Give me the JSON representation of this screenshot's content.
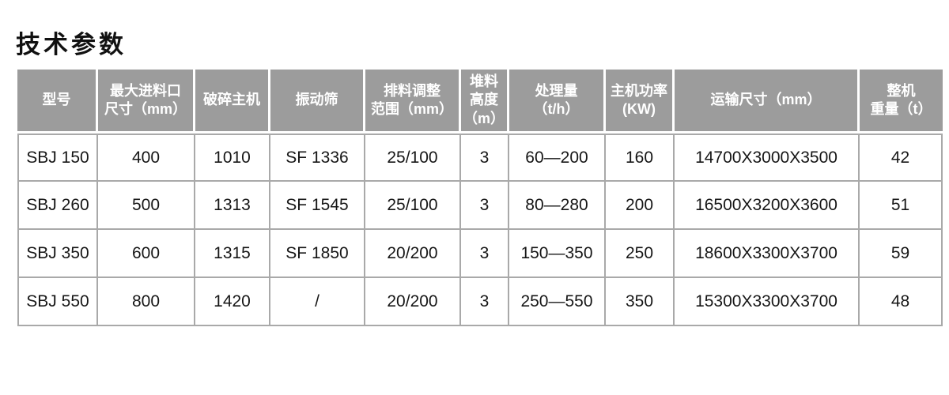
{
  "page_title": "技术参数",
  "colors": {
    "header_bg": "#9c9c9c",
    "header_text": "#ffffff",
    "grid_line": "#a9a9a9",
    "body_text": "#161616",
    "page_bg": "#ffffff"
  },
  "table": {
    "headers": [
      "型号",
      "最大进料口\n尺寸（mm）",
      "破碎主机",
      "振动筛",
      "排料调整\n范围（mm）",
      "堆料\n高度\n（m）",
      "处理量\n（t/h）",
      "主机功率\n(KW)",
      "运输尺寸（mm）",
      "整机\n重量（t）"
    ],
    "rows": [
      [
        "SBJ 150",
        "400",
        "1010",
        "SF 1336",
        "25/100",
        "3",
        "60—200",
        "160",
        "14700X3000X3500",
        "42"
      ],
      [
        "SBJ 260",
        "500",
        "1313",
        "SF 1545",
        "25/100",
        "3",
        "80—280",
        "200",
        "16500X3200X3600",
        "51"
      ],
      [
        "SBJ 350",
        "600",
        "1315",
        "SF 1850",
        "20/200",
        "3",
        "150—350",
        "250",
        "18600X3300X3700",
        "59"
      ],
      [
        "SBJ 550",
        "800",
        "1420",
        "/",
        "20/200",
        "3",
        "250—550",
        "350",
        "15300X3300X3700",
        "48"
      ]
    ]
  }
}
